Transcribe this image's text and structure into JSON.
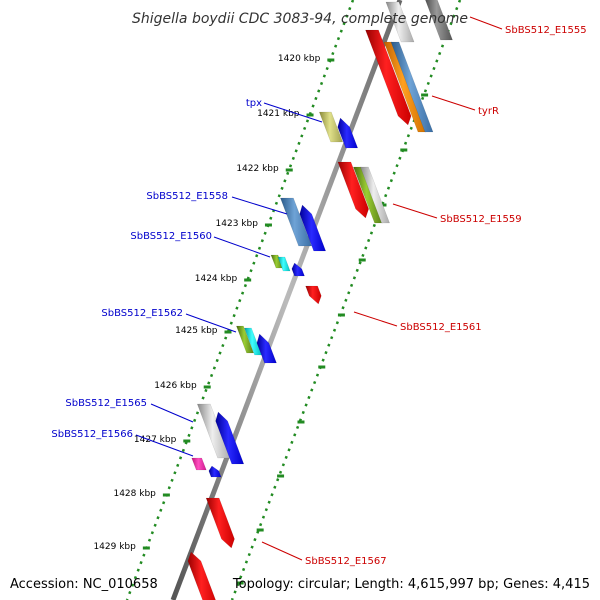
{
  "title": "Shigella boydii CDC 3083-94, complete genome",
  "accession": "Accession: NC_010658",
  "topology": "Topology: circular; Length: 4,615,997 bp; Genes: 4,415",
  "colors": {
    "backbone": "#888888",
    "ruler": "#228b22",
    "label_left": "#0000cc",
    "label_right": "#cc0000"
  },
  "ticks": [
    {
      "label": "1420 kbp"
    },
    {
      "label": "1421 kbp"
    },
    {
      "label": "1422 kbp"
    },
    {
      "label": "1423 kbp"
    },
    {
      "label": "1424 kbp"
    },
    {
      "label": "1425 kbp"
    },
    {
      "label": "1426 kbp"
    },
    {
      "label": "1427 kbp"
    },
    {
      "label": "1428 kbp"
    },
    {
      "label": "1429 kbp"
    }
  ],
  "gene_labels": [
    {
      "text": "SbBS512_E1555",
      "side": "right"
    },
    {
      "text": "tyrR",
      "side": "right"
    },
    {
      "text": "tpx",
      "side": "left"
    },
    {
      "text": "SbBS512_E1558",
      "side": "left"
    },
    {
      "text": "SbBS512_E1559",
      "side": "right"
    },
    {
      "text": "SbBS512_E1560",
      "side": "left"
    },
    {
      "text": "SbBS512_E1561",
      "side": "right"
    },
    {
      "text": "SbBS512_E1562",
      "side": "left"
    },
    {
      "text": "SbBS512_E1565",
      "side": "left"
    },
    {
      "text": "SbBS512_E1566",
      "side": "left"
    },
    {
      "text": "SbBS512_E1567",
      "side": "right"
    }
  ]
}
